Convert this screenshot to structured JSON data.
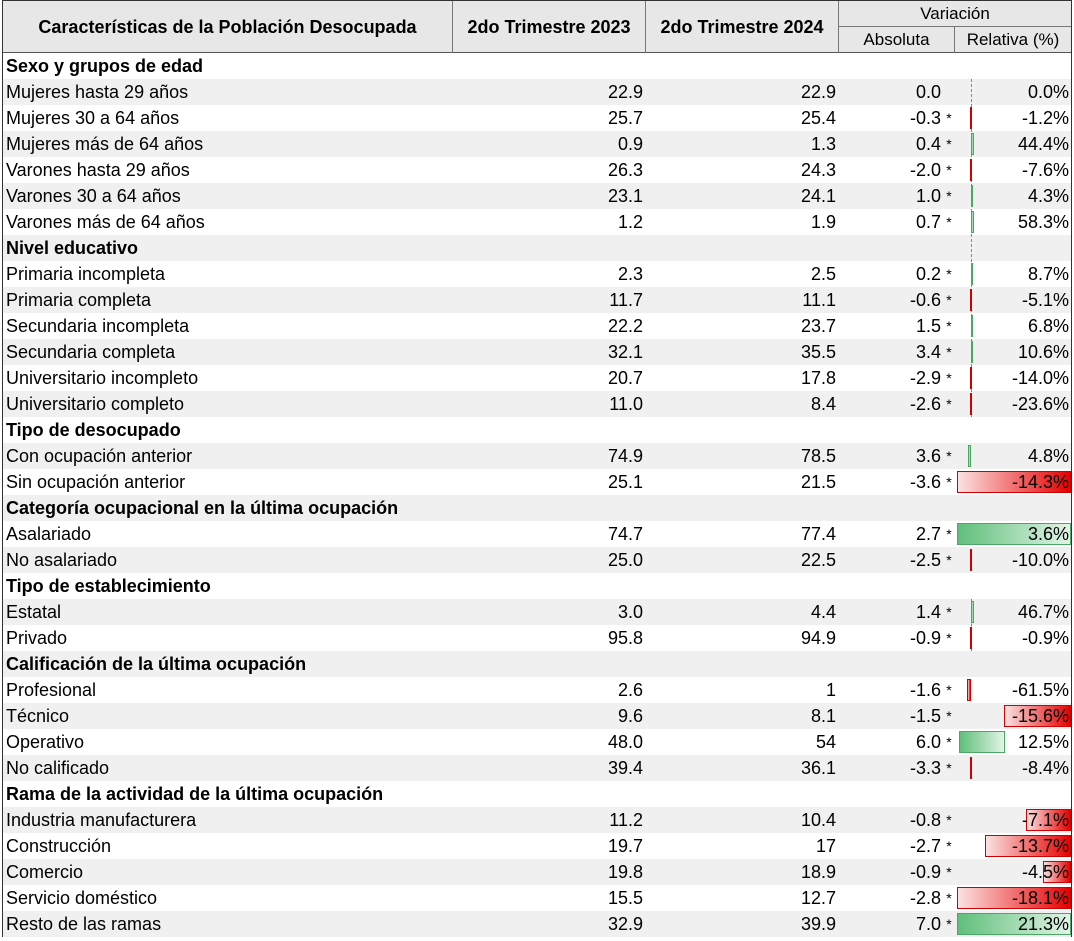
{
  "header": {
    "col1": "Características de la Población Desocupada",
    "col2": "2do Trimestre 2023",
    "col3": "2do Trimestre 2024",
    "variation": "Variación",
    "absolute": "Absoluta",
    "relative": "Relativa (%)"
  },
  "rows": [
    {
      "type": "section",
      "label": "Sexo y grupos de edad"
    },
    {
      "type": "data",
      "label": "Mujeres hasta 29 años",
      "v2023": "22.9",
      "v2024": "22.9",
      "abs": "0.0",
      "star": "",
      "rel": "0.0%",
      "bar": 0
    },
    {
      "type": "data",
      "label": "Mujeres 30 a 64 años",
      "v2023": "25.7",
      "v2024": "25.4",
      "abs": "-0.3",
      "star": "*",
      "rel": "-1.2%",
      "bar": -1.2
    },
    {
      "type": "data",
      "label": "Mujeres más de 64 años",
      "v2023": "0.9",
      "v2024": "1.3",
      "abs": "0.4",
      "star": "*",
      "rel": "44.4%",
      "bar": 44.4
    },
    {
      "type": "data",
      "label": "Varones hasta 29 años",
      "v2023": "26.3",
      "v2024": "24.3",
      "abs": "-2.0",
      "star": "*",
      "rel": "-7.6%",
      "bar": -7.6
    },
    {
      "type": "data",
      "label": "Varones 30 a 64 años",
      "v2023": "23.1",
      "v2024": "24.1",
      "abs": "1.0",
      "star": "*",
      "rel": "4.3%",
      "bar": 4.3
    },
    {
      "type": "data",
      "label": "Varones más de 64 años",
      "v2023": "1.2",
      "v2024": "1.9",
      "abs": "0.7",
      "star": "*",
      "rel": "58.3%",
      "bar": 58.3
    },
    {
      "type": "section",
      "label": "Nivel educativo"
    },
    {
      "type": "data",
      "label": "Primaria incompleta",
      "v2023": "2.3",
      "v2024": "2.5",
      "abs": "0.2",
      "star": "*",
      "rel": "8.7%",
      "bar": 8.7
    },
    {
      "type": "data",
      "label": "Primaria completa",
      "v2023": "11.7",
      "v2024": "11.1",
      "abs": "-0.6",
      "star": "*",
      "rel": "-5.1%",
      "bar": -5.1
    },
    {
      "type": "data",
      "label": "Secundaria incompleta",
      "v2023": "22.2",
      "v2024": "23.7",
      "abs": "1.5",
      "star": "*",
      "rel": "6.8%",
      "bar": 6.8
    },
    {
      "type": "data",
      "label": "Secundaria completa",
      "v2023": "32.1",
      "v2024": "35.5",
      "abs": "3.4",
      "star": "*",
      "rel": "10.6%",
      "bar": 10.6
    },
    {
      "type": "data",
      "label": "Universitario incompleto",
      "v2023": "20.7",
      "v2024": "17.8",
      "abs": "-2.9",
      "star": "*",
      "rel": "-14.0%",
      "bar": -14.0
    },
    {
      "type": "data",
      "label": "Universitario completo",
      "v2023": "11.0",
      "v2024": "8.4",
      "abs": "-2.6",
      "star": "*",
      "rel": "-23.6%",
      "bar": -23.6
    },
    {
      "type": "section",
      "label": "Tipo de desocupado"
    },
    {
      "type": "data",
      "label": "Con ocupación anterior",
      "v2023": "74.9",
      "v2024": "78.5",
      "abs": "3.6",
      "star": "*",
      "rel": "4.8%",
      "bar": 4.8
    },
    {
      "type": "data",
      "label": "Sin ocupación anterior",
      "v2023": "25.1",
      "v2024": "21.5",
      "abs": "-3.6",
      "star": "*",
      "rel": "-14.3%",
      "bar": -14.3
    },
    {
      "type": "section",
      "label": "Categoría ocupacional en la última ocupación"
    },
    {
      "type": "data",
      "label": "Asalariado",
      "v2023": "74.7",
      "v2024": "77.4",
      "abs": "2.7",
      "star": "*",
      "rel": "3.6%",
      "bar": 3.6
    },
    {
      "type": "data",
      "label": "No asalariado",
      "v2023": "25.0",
      "v2024": "22.5",
      "abs": "-2.5",
      "star": "*",
      "rel": "-10.0%",
      "bar": -10.0
    },
    {
      "type": "section",
      "label": "Tipo de establecimiento"
    },
    {
      "type": "data",
      "label": "Estatal",
      "v2023": "3.0",
      "v2024": "4.4",
      "abs": "1.4",
      "star": "*",
      "rel": "46.7%",
      "bar": 46.7
    },
    {
      "type": "data",
      "label": "Privado",
      "v2023": "95.8",
      "v2024": "94.9",
      "abs": "-0.9",
      "star": "*",
      "rel": "-0.9%",
      "bar": -0.9
    },
    {
      "type": "section",
      "label": "Calificación de la última ocupación"
    },
    {
      "type": "data",
      "label": "Profesional",
      "v2023": "2.6",
      "v2024": "1",
      "abs": "-1.6",
      "star": "*",
      "rel": "-61.5%",
      "bar": -61.5
    },
    {
      "type": "data",
      "label": "Técnico",
      "v2023": "9.6",
      "v2024": "8.1",
      "abs": "-1.5",
      "star": "*",
      "rel": "-15.6%",
      "bar": -15.6
    },
    {
      "type": "data",
      "label": "Operativo",
      "v2023": "48.0",
      "v2024": "54",
      "abs": "6.0",
      "star": "*",
      "rel": "12.5%",
      "bar": 12.5
    },
    {
      "type": "data",
      "label": "No calificado",
      "v2023": "39.4",
      "v2024": "36.1",
      "abs": "-3.3",
      "star": "*",
      "rel": "-8.4%",
      "bar": -8.4
    },
    {
      "type": "section",
      "label": "Rama de la actividad de la última ocupación"
    },
    {
      "type": "data",
      "label": "Industria manufacturera",
      "v2023": "11.2",
      "v2024": "10.4",
      "abs": "-0.8",
      "star": "*",
      "rel": "-7.1%",
      "bar": -7.1
    },
    {
      "type": "data",
      "label": "Construcción",
      "v2023": "19.7",
      "v2024": "17",
      "abs": "-2.7",
      "star": "*",
      "rel": "-13.7%",
      "bar": -13.7
    },
    {
      "type": "data",
      "label": "Comercio",
      "v2023": "19.8",
      "v2024": "18.9",
      "abs": "-0.9",
      "star": "*",
      "rel": "-4.5%",
      "bar": -4.5
    },
    {
      "type": "data",
      "label": "Servicio doméstico",
      "v2023": "15.5",
      "v2024": "12.7",
      "abs": "-2.8",
      "star": "*",
      "rel": "-18.1%",
      "bar": -18.1
    },
    {
      "type": "data",
      "label": "Resto de las ramas",
      "v2023": "32.9",
      "v2024": "39.9",
      "abs": "7.0",
      "star": "*",
      "rel": "21.3%",
      "bar": 21.3
    }
  ],
  "colors": {
    "positive_bar": "#5fbf7a",
    "negative_bar": "#e60000",
    "header_bg": "#e7e7e7",
    "row_shade": "#f0f0f0"
  }
}
